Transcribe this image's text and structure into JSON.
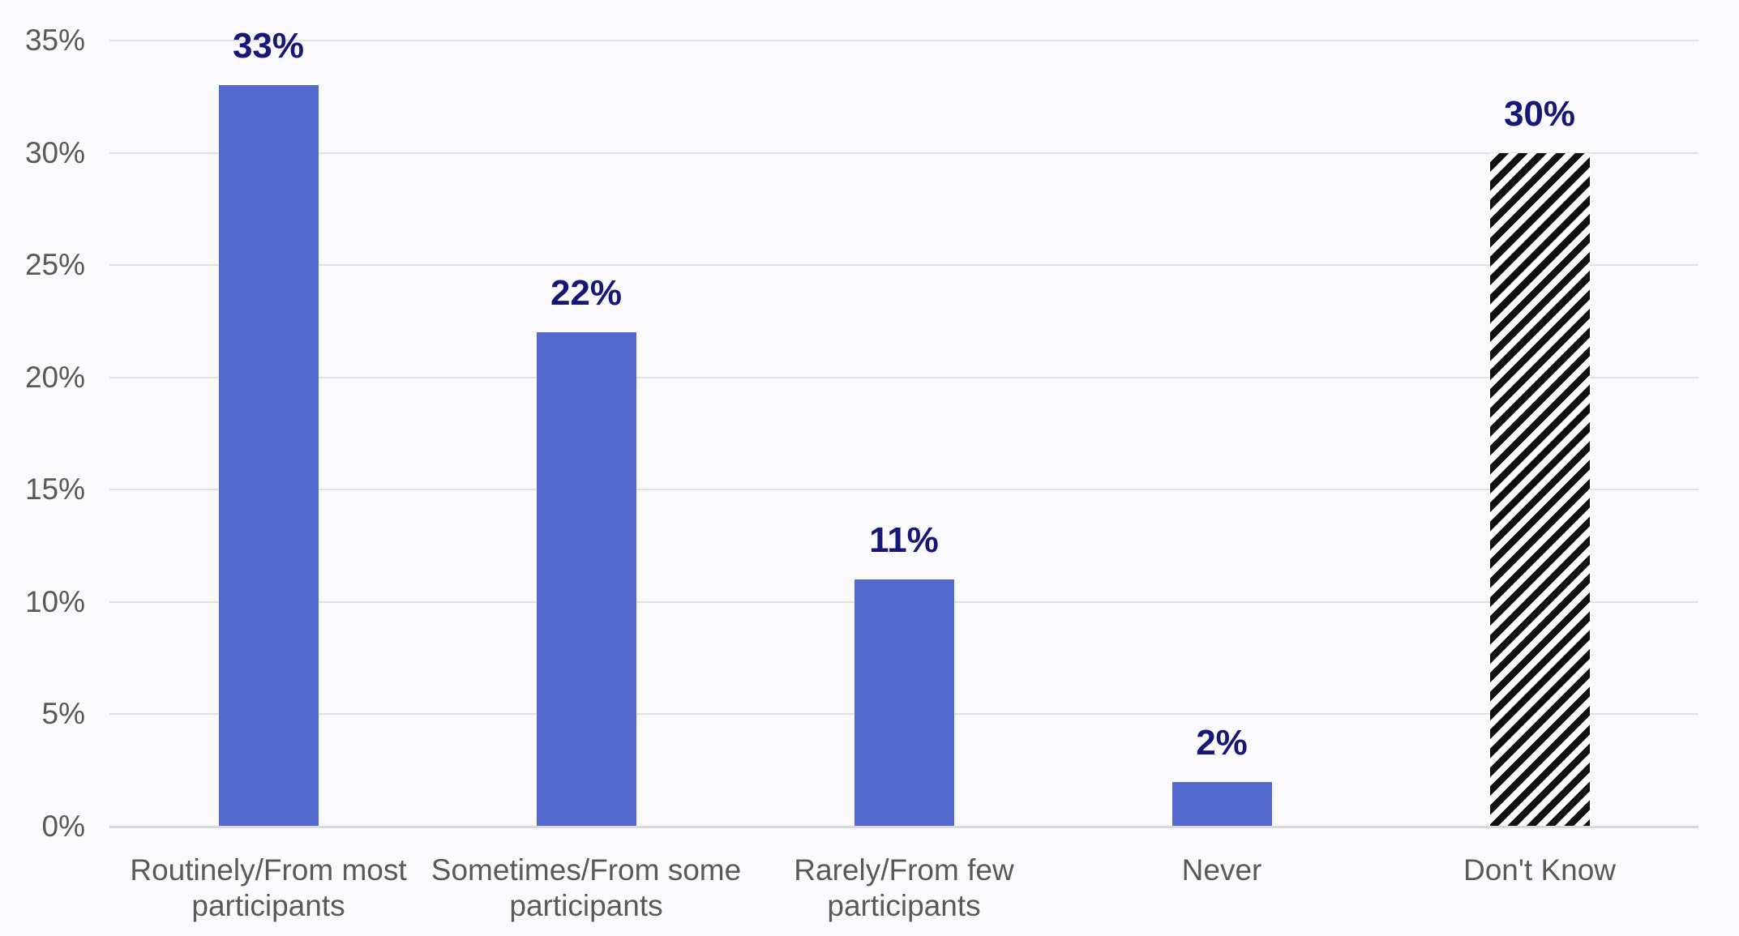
{
  "chart_data": {
    "type": "bar",
    "title": "",
    "xlabel": "",
    "ylabel": "",
    "categories": [
      "Routinely/From most participants",
      "Sometimes/From some participants",
      "Rarely/From few participants",
      "Never",
      "Don't Know"
    ],
    "values": [
      33,
      22,
      11,
      2,
      30
    ],
    "data_labels": [
      "33%",
      "22%",
      "11%",
      "2%",
      "30%"
    ],
    "bar_styles": [
      "solid",
      "solid",
      "solid",
      "solid",
      "hatched"
    ],
    "ylim": [
      0,
      35
    ],
    "yticks": [
      0,
      5,
      10,
      15,
      20,
      25,
      30,
      35
    ],
    "ytick_labels": [
      "0%",
      "5%",
      "10%",
      "15%",
      "20%",
      "25%",
      "30%",
      "35%"
    ],
    "grid": true,
    "legend": false,
    "colors": {
      "bar_fill": "#5369CD",
      "data_label": "#171778",
      "axis_text": "#595959",
      "gridline": "#E2E2E4",
      "baseline": "#D8D8DA",
      "background": "#FAFAFC",
      "hatch_foreground": "#101010",
      "hatch_background": "#FFFFFF"
    }
  }
}
